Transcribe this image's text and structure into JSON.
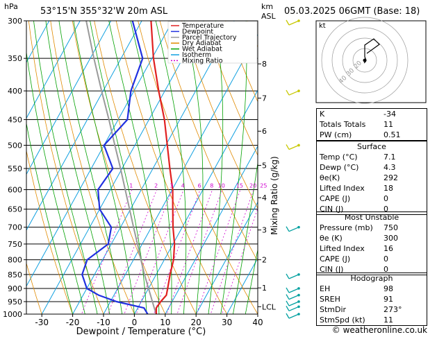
{
  "header": {
    "location": "53°15'N 355°32'W 20m ASL",
    "datetime": "05.03.2025 06GMT (Base: 18)",
    "pressure_unit": "hPa",
    "km_label": "km",
    "asl_label": "ASL"
  },
  "chart_data": {
    "type": "skew-t",
    "xlabel": "Dewpoint / Temperature (°C)",
    "ylabel_right": "Mixing Ratio (g/kg)",
    "xlim": [
      -35,
      40
    ],
    "ylim": [
      1000,
      300
    ],
    "x_ticks": [
      "-30",
      "-20",
      "-10",
      "0",
      "10",
      "20",
      "30",
      "40"
    ],
    "x_tick_values": [
      -30,
      -20,
      -10,
      0,
      10,
      20,
      30,
      40
    ],
    "pressure_levels": [
      300,
      350,
      400,
      450,
      500,
      550,
      600,
      650,
      700,
      750,
      800,
      850,
      900,
      950,
      1000
    ],
    "pressure_labels": [
      "300",
      "350",
      "400",
      "450",
      "500",
      "550",
      "600",
      "650",
      "700",
      "750",
      "800",
      "850",
      "900",
      "950",
      "1000"
    ],
    "km_ticks": [
      {
        "km": "8",
        "p": 358
      },
      {
        "km": "7",
        "p": 412
      },
      {
        "km": "6",
        "p": 472
      },
      {
        "km": "5",
        "p": 543
      },
      {
        "km": "4",
        "p": 620
      },
      {
        "km": "3",
        "p": 708
      },
      {
        "km": "2",
        "p": 800
      },
      {
        "km": "1",
        "p": 898
      },
      {
        "km": "LCL",
        "p": 970
      }
    ],
    "mixing_ratio_labels": [
      "1",
      "2",
      "3",
      "4",
      "6",
      "8",
      "10",
      "15",
      "20",
      "25"
    ],
    "mixing_ratio_values": [
      1,
      2,
      3,
      4,
      6,
      8,
      10,
      15,
      20,
      25
    ],
    "legend": [
      {
        "name": "Temperature",
        "color": "#e02020"
      },
      {
        "name": "Dewpoint",
        "color": "#2030e0"
      },
      {
        "name": "Parcel Trajectory",
        "color": "#9a9a9a"
      },
      {
        "name": "Dry Adiabat",
        "color": "#e08a00"
      },
      {
        "name": "Wet Adiabat",
        "color": "#00a000"
      },
      {
        "name": "Isotherm",
        "color": "#10a0e0"
      },
      {
        "name": "Mixing Ratio",
        "color": "#d000d0"
      }
    ],
    "series": [
      {
        "name": "Temperature",
        "points": [
          [
            1000,
            7.1
          ],
          [
            975,
            6.0
          ],
          [
            950,
            6.3
          ],
          [
            925,
            7.0
          ],
          [
            900,
            6.2
          ],
          [
            850,
            4.5
          ],
          [
            800,
            3.0
          ],
          [
            750,
            0.5
          ],
          [
            700,
            -3.0
          ],
          [
            650,
            -6.3
          ],
          [
            600,
            -9.8
          ],
          [
            550,
            -14.5
          ],
          [
            500,
            -19.5
          ],
          [
            450,
            -25.0
          ],
          [
            400,
            -32.0
          ],
          [
            350,
            -39.5
          ],
          [
            300,
            -47.0
          ]
        ]
      },
      {
        "name": "Dewpoint",
        "points": [
          [
            1000,
            4.3
          ],
          [
            975,
            2.0
          ],
          [
            950,
            -8.0
          ],
          [
            925,
            -15.0
          ],
          [
            900,
            -20.0
          ],
          [
            850,
            -24.0
          ],
          [
            800,
            -25.0
          ],
          [
            750,
            -21.0
          ],
          [
            700,
            -23.0
          ],
          [
            650,
            -30.0
          ],
          [
            600,
            -34.0
          ],
          [
            550,
            -33.0
          ],
          [
            500,
            -40.0
          ],
          [
            450,
            -37.0
          ],
          [
            400,
            -41.0
          ],
          [
            350,
            -43.0
          ],
          [
            300,
            -53.0
          ]
        ]
      },
      {
        "name": "Parcel Trajectory",
        "points": [
          [
            1000,
            7.1
          ],
          [
            970,
            5.0
          ],
          [
            900,
            0.0
          ],
          [
            850,
            -3.8
          ],
          [
            800,
            -7.6
          ],
          [
            750,
            -11.5
          ],
          [
            700,
            -15.8
          ],
          [
            650,
            -20.3
          ],
          [
            600,
            -25.2
          ],
          [
            550,
            -30.5
          ],
          [
            500,
            -36.5
          ],
          [
            450,
            -43.0
          ],
          [
            400,
            -50.5
          ],
          [
            350,
            -58.8
          ],
          [
            300,
            -68.0
          ]
        ]
      }
    ]
  },
  "hodograph": {
    "label": "kt",
    "ring_labels": [
      "40",
      "30",
      "20"
    ]
  },
  "indices": [
    {
      "label": "K",
      "value": "-34"
    },
    {
      "label": "Totals Totals",
      "value": "11"
    },
    {
      "label": "PW (cm)",
      "value": "0.51"
    }
  ],
  "surface": {
    "title": "Surface",
    "rows": [
      {
        "label": "Temp (°C)",
        "value": "7.1"
      },
      {
        "label": "Dewp (°C)",
        "value": "4.3"
      },
      {
        "label": "θe(K)",
        "value": "292"
      },
      {
        "label": "Lifted Index",
        "value": "18"
      },
      {
        "label": "CAPE (J)",
        "value": "0"
      },
      {
        "label": "CIN (J)",
        "value": "0"
      }
    ]
  },
  "most_unstable": {
    "title": "Most Unstable",
    "rows": [
      {
        "label": "Pressure (mb)",
        "value": "750"
      },
      {
        "label": "θe (K)",
        "value": "300"
      },
      {
        "label": "Lifted Index",
        "value": "16"
      },
      {
        "label": "CAPE (J)",
        "value": "0"
      },
      {
        "label": "CIN (J)",
        "value": "0"
      }
    ]
  },
  "hodograph_params": {
    "title": "Hodograph",
    "rows": [
      {
        "label": "EH",
        "value": "98"
      },
      {
        "label": "SREH",
        "value": "91"
      },
      {
        "label": "StmDir",
        "value": "273°"
      },
      {
        "label": "StmSpd (kt)",
        "value": "11"
      }
    ]
  },
  "copyright": "© weatheronline.co.uk"
}
